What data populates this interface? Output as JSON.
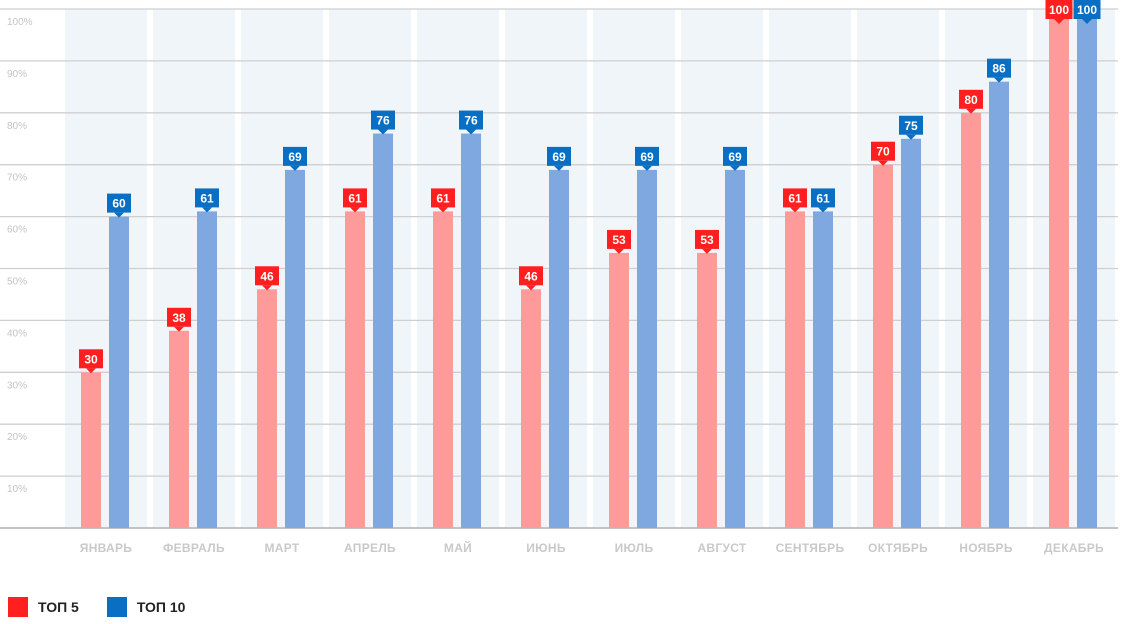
{
  "chart_data": {
    "type": "bar",
    "categories": [
      "ЯНВАРЬ",
      "ФЕВРАЛЬ",
      "МАРТ",
      "АПРЕЛЬ",
      "МАЙ",
      "ИЮНЬ",
      "ИЮЛЬ",
      "АВГУСТ",
      "СЕНТЯБРЬ",
      "ОКТЯБРЬ",
      "НОЯБРЬ",
      "ДЕКАБРЬ"
    ],
    "series": [
      {
        "name": "ТОП 5",
        "values": [
          30,
          38,
          46,
          61,
          61,
          46,
          53,
          53,
          61,
          70,
          80,
          100
        ]
      },
      {
        "name": "ТОП 10",
        "values": [
          60,
          61,
          69,
          76,
          76,
          69,
          69,
          69,
          61,
          75,
          86,
          100
        ]
      }
    ],
    "value_labels": [
      [
        "30",
        "38",
        "46",
        "61",
        "61",
        "46",
        "53",
        "53",
        "61",
        "70",
        "80",
        "100"
      ],
      [
        "60",
        "61",
        "69",
        "76",
        "76",
        "69",
        "69",
        "69",
        "61",
        "75",
        "86",
        "100"
      ]
    ],
    "y_ticks": [
      {
        "value": 10,
        "label": "10%"
      },
      {
        "value": 20,
        "label": "20%"
      },
      {
        "value": 30,
        "label": "30%"
      },
      {
        "value": 40,
        "label": "40%"
      },
      {
        "value": 50,
        "label": "50%"
      },
      {
        "value": 60,
        "label": "60%"
      },
      {
        "value": 70,
        "label": "70%"
      },
      {
        "value": 80,
        "label": "80%"
      },
      {
        "value": 90,
        "label": "90%"
      },
      {
        "value": 100,
        "label": "100%"
      }
    ],
    "ylim": [
      0,
      100
    ],
    "grid": true,
    "legend": "bottom-left",
    "title": "",
    "xlabel": "",
    "ylabel": ""
  },
  "colors": {
    "top5_bar": "#ff9a9a",
    "top5_label": "#ff1f1f",
    "top10_bar": "#80a8e0",
    "top10_label": "#0a6fc2",
    "column_bg": "#f0f5fa",
    "grid": "#cfcfcf"
  },
  "legend": {
    "items": [
      {
        "label": "ТОП 5",
        "color": "#ff1f1f"
      },
      {
        "label": "ТОП 10",
        "color": "#0a6fc2"
      }
    ]
  }
}
